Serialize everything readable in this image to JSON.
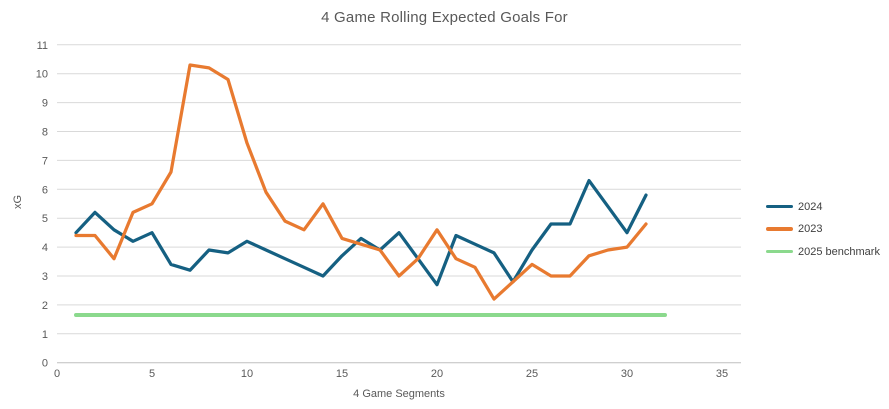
{
  "page": {
    "background": "#FFFFFF"
  },
  "colors": {
    "title_text": "#595959",
    "axis_text": "#595959",
    "legend_text": "#404040",
    "gridline": "#D9D9D9",
    "axis_line": "#BFBFBF"
  },
  "chart_data": {
    "type": "line",
    "title": "4 Game Rolling Expected Goals For",
    "xlabel": "4 Game Segments",
    "ylabel": "xG",
    "xlim": [
      0,
      35
    ],
    "ylim": [
      0,
      11
    ],
    "x_ticks": [
      0,
      5,
      10,
      15,
      20,
      25,
      30,
      35
    ],
    "y_ticks": [
      0,
      1,
      2,
      3,
      4,
      5,
      6,
      7,
      8,
      9,
      10,
      11
    ],
    "grid": true,
    "legend_position": "right",
    "series": [
      {
        "name": "2024",
        "color": "#156082",
        "x": [
          1,
          2,
          3,
          4,
          5,
          6,
          7,
          8,
          9,
          10,
          11,
          12,
          13,
          14,
          15,
          16,
          17,
          18,
          19,
          20,
          21,
          22,
          23,
          24,
          25,
          26,
          27,
          28,
          29,
          30,
          31
        ],
        "y": [
          4.5,
          5.2,
          4.6,
          4.2,
          4.5,
          3.4,
          3.2,
          3.9,
          3.8,
          4.2,
          3.9,
          3.6,
          3.3,
          3.0,
          3.7,
          4.3,
          3.9,
          4.5,
          3.6,
          2.7,
          4.4,
          4.1,
          3.8,
          2.8,
          3.9,
          4.8,
          4.8,
          6.3,
          5.4,
          4.5,
          5.8
        ]
      },
      {
        "name": "2023",
        "color": "#E87A30",
        "x": [
          1,
          2,
          3,
          4,
          5,
          6,
          7,
          8,
          9,
          10,
          11,
          12,
          13,
          14,
          15,
          16,
          17,
          18,
          19,
          20,
          21,
          22,
          23,
          24,
          25,
          26,
          27,
          28,
          29,
          30,
          31
        ],
        "y": [
          4.4,
          4.4,
          3.6,
          5.2,
          5.5,
          6.6,
          10.3,
          10.2,
          9.8,
          7.6,
          5.9,
          4.9,
          4.6,
          5.5,
          4.3,
          4.1,
          3.9,
          3.0,
          3.6,
          4.6,
          3.6,
          3.3,
          2.2,
          2.8,
          3.4,
          3.0,
          3.0,
          3.7,
          3.9,
          4.0,
          4.8
        ]
      },
      {
        "name": "2025 benchmark",
        "color": "#8BD98D",
        "x": [
          1,
          32
        ],
        "y": [
          1.65,
          1.65
        ]
      }
    ]
  }
}
